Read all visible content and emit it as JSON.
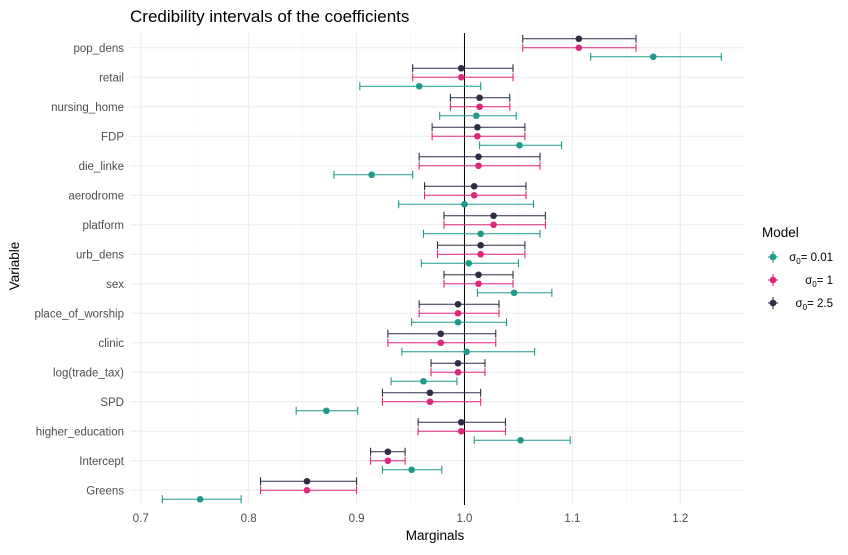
{
  "chart_data": {
    "type": "scatter",
    "subtype": "point-range",
    "title": "Credibility intervals of the coefficients",
    "xlabel": "Marginals",
    "ylabel": "Variable",
    "xlim": [
      0.69,
      1.26
    ],
    "xticks": [
      0.7,
      0.8,
      0.9,
      1.0,
      1.1,
      1.2
    ],
    "xtick_labels": [
      "0.7",
      "0.8",
      "0.9",
      "1.0",
      "1.1",
      "1.2"
    ],
    "reference_line": 1.0,
    "grid": true,
    "legend": {
      "title": "Model",
      "position": "right"
    },
    "categories": [
      "pop_dens",
      "retail",
      "nursing_home",
      "FDP",
      "die_linke",
      "aerodrome",
      "platform",
      "urb_dens",
      "sex",
      "place_of_worship",
      "clinic",
      "log(trade_tax)",
      "SPD",
      "higher_education",
      "Intercept",
      "Greens"
    ],
    "series": [
      {
        "name": "0.01",
        "legend_prefix": "σ",
        "legend_sub": "0",
        "legend_eq": "= ",
        "color": "#1f9a8a",
        "points": [
          {
            "y": "pop_dens",
            "x": 1.175,
            "lo": 1.117,
            "hi": 1.238
          },
          {
            "y": "retail",
            "x": 0.958,
            "lo": 0.903,
            "hi": 1.015
          },
          {
            "y": "nursing_home",
            "x": 1.011,
            "lo": 0.977,
            "hi": 1.048
          },
          {
            "y": "FDP",
            "x": 1.051,
            "lo": 1.014,
            "hi": 1.09
          },
          {
            "y": "die_linke",
            "x": 0.914,
            "lo": 0.879,
            "hi": 0.952
          },
          {
            "y": "aerodrome",
            "x": 1.0,
            "lo": 0.939,
            "hi": 1.064
          },
          {
            "y": "platform",
            "x": 1.015,
            "lo": 0.962,
            "hi": 1.07
          },
          {
            "y": "urb_dens",
            "x": 1.004,
            "lo": 0.96,
            "hi": 1.05
          },
          {
            "y": "sex",
            "x": 1.046,
            "lo": 1.012,
            "hi": 1.081
          },
          {
            "y": "place_of_worship",
            "x": 0.994,
            "lo": 0.951,
            "hi": 1.039
          },
          {
            "y": "clinic",
            "x": 1.002,
            "lo": 0.942,
            "hi": 1.065
          },
          {
            "y": "log(trade_tax)",
            "x": 0.962,
            "lo": 0.932,
            "hi": 0.993
          },
          {
            "y": "SPD",
            "x": 0.872,
            "lo": 0.844,
            "hi": 0.901
          },
          {
            "y": "higher_education",
            "x": 1.052,
            "lo": 1.009,
            "hi": 1.098
          },
          {
            "y": "Intercept",
            "x": 0.951,
            "lo": 0.924,
            "hi": 0.979
          },
          {
            "y": "Greens",
            "x": 0.755,
            "lo": 0.72,
            "hi": 0.793
          }
        ]
      },
      {
        "name": "1",
        "legend_prefix": "σ",
        "legend_sub": "0",
        "legend_eq": "= ",
        "color": "#e0287a",
        "points": [
          {
            "y": "pop_dens",
            "x": 1.106,
            "lo": 1.054,
            "hi": 1.159
          },
          {
            "y": "retail",
            "x": 0.997,
            "lo": 0.952,
            "hi": 1.045
          },
          {
            "y": "nursing_home",
            "x": 1.014,
            "lo": 0.987,
            "hi": 1.042
          },
          {
            "y": "FDP",
            "x": 1.012,
            "lo": 0.97,
            "hi": 1.056
          },
          {
            "y": "die_linke",
            "x": 1.013,
            "lo": 0.958,
            "hi": 1.07
          },
          {
            "y": "aerodrome",
            "x": 1.009,
            "lo": 0.963,
            "hi": 1.057
          },
          {
            "y": "platform",
            "x": 1.027,
            "lo": 0.981,
            "hi": 1.075
          },
          {
            "y": "urb_dens",
            "x": 1.015,
            "lo": 0.975,
            "hi": 1.056
          },
          {
            "y": "sex",
            "x": 1.013,
            "lo": 0.981,
            "hi": 1.045
          },
          {
            "y": "place_of_worship",
            "x": 0.994,
            "lo": 0.958,
            "hi": 1.032
          },
          {
            "y": "clinic",
            "x": 0.978,
            "lo": 0.929,
            "hi": 1.029
          },
          {
            "y": "log(trade_tax)",
            "x": 0.994,
            "lo": 0.969,
            "hi": 1.019
          },
          {
            "y": "SPD",
            "x": 0.968,
            "lo": 0.924,
            "hi": 1.015
          },
          {
            "y": "higher_education",
            "x": 0.997,
            "lo": 0.957,
            "hi": 1.038
          },
          {
            "y": "Intercept",
            "x": 0.929,
            "lo": 0.913,
            "hi": 0.945
          },
          {
            "y": "Greens",
            "x": 0.854,
            "lo": 0.811,
            "hi": 0.9
          }
        ]
      },
      {
        "name": "2.5",
        "legend_prefix": "σ",
        "legend_sub": "0",
        "legend_eq": "= ",
        "color": "#2d2d45",
        "points": [
          {
            "y": "pop_dens",
            "x": 1.106,
            "lo": 1.054,
            "hi": 1.159
          },
          {
            "y": "retail",
            "x": 0.997,
            "lo": 0.952,
            "hi": 1.045
          },
          {
            "y": "nursing_home",
            "x": 1.014,
            "lo": 0.987,
            "hi": 1.042
          },
          {
            "y": "FDP",
            "x": 1.012,
            "lo": 0.97,
            "hi": 1.056
          },
          {
            "y": "die_linke",
            "x": 1.013,
            "lo": 0.958,
            "hi": 1.07
          },
          {
            "y": "aerodrome",
            "x": 1.009,
            "lo": 0.963,
            "hi": 1.057
          },
          {
            "y": "platform",
            "x": 1.027,
            "lo": 0.981,
            "hi": 1.075
          },
          {
            "y": "urb_dens",
            "x": 1.015,
            "lo": 0.975,
            "hi": 1.056
          },
          {
            "y": "sex",
            "x": 1.013,
            "lo": 0.981,
            "hi": 1.045
          },
          {
            "y": "place_of_worship",
            "x": 0.994,
            "lo": 0.958,
            "hi": 1.032
          },
          {
            "y": "clinic",
            "x": 0.978,
            "lo": 0.929,
            "hi": 1.029
          },
          {
            "y": "log(trade_tax)",
            "x": 0.994,
            "lo": 0.969,
            "hi": 1.019
          },
          {
            "y": "SPD",
            "x": 0.968,
            "lo": 0.924,
            "hi": 1.015
          },
          {
            "y": "higher_education",
            "x": 0.997,
            "lo": 0.957,
            "hi": 1.038
          },
          {
            "y": "Intercept",
            "x": 0.929,
            "lo": 0.913,
            "hi": 0.945
          },
          {
            "y": "Greens",
            "x": 0.854,
            "lo": 0.811,
            "hi": 0.9
          }
        ]
      }
    ]
  }
}
